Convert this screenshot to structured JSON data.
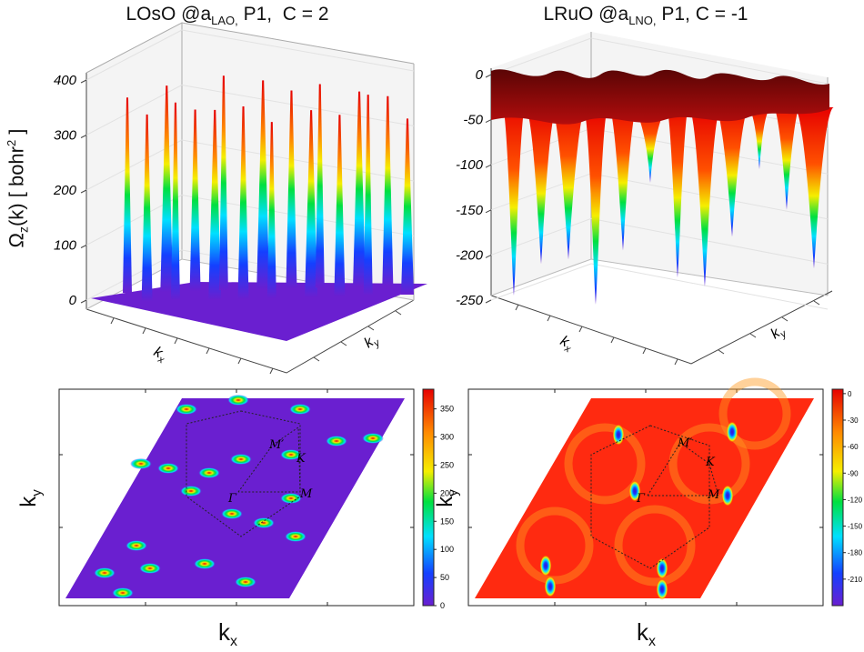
{
  "titles": {
    "left": {
      "pre": "LOsO @a",
      "sub": "LAO,",
      "post": " P1,  C = 2"
    },
    "right": {
      "pre": "LRuO @a",
      "sub": "LNO,",
      "post": " P1, C = -1"
    }
  },
  "ylabel": {
    "pre": "Ω",
    "sub": "z",
    "mid": "(k) [ bohr",
    "sup": "2",
    "post": " ]"
  },
  "kx": {
    "base": "k",
    "sub": "x"
  },
  "ky": {
    "base": "k",
    "sub": "y"
  },
  "bz_labels": {
    "gamma": "Γ",
    "M": "M",
    "Mprime": "M′",
    "K": "K"
  },
  "colors": {
    "purple": "#6a1fd0",
    "blue": "#1440ff",
    "cyan": "#00e0ff",
    "green": "#00e040",
    "yellow": "#f5ee00",
    "orange": "#ff8a00",
    "red": "#e60000",
    "dark_red": "#5a0505"
  },
  "chart_data": [
    {
      "type": "surface3d",
      "title": "LOsO @aLAO, P1,  C = 2",
      "xlabel": "kx",
      "ylabel": "ky",
      "zlabel": "Ωz(k) [ bohr2 ]",
      "z_ticks": [
        0,
        100,
        200,
        300,
        400
      ],
      "zlim": [
        0,
        400
      ],
      "baseline": 0,
      "peaks": [
        355,
        340,
        375,
        360,
        330,
        345,
        390,
        350,
        380,
        320,
        360,
        340,
        370,
        330,
        355,
        365,
        345,
        320
      ]
    },
    {
      "type": "surface3d",
      "title": "LRuO @aLNO, P1, C = -1",
      "xlabel": "kx",
      "ylabel": "ky",
      "zlabel": "Ωz(k) [ bohr2 ]",
      "z_ticks": [
        0,
        -50,
        -100,
        -150,
        -200,
        -250
      ],
      "zlim": [
        -250,
        0
      ],
      "baseline": 0,
      "troughs": [
        -245,
        -210,
        -205,
        -255,
        -195,
        -120,
        -225,
        -235,
        -180,
        -105,
        -150,
        -215
      ]
    },
    {
      "type": "heatmap",
      "xlabel": "kx",
      "ylabel": "ky",
      "colorbar_ticks": [
        350,
        300,
        250,
        200,
        150,
        100,
        50,
        0
      ],
      "clim": [
        0,
        385
      ],
      "background_value": 0,
      "hotspot_value": 380
    },
    {
      "type": "heatmap",
      "xlabel": "kx",
      "ylabel": "ky",
      "colorbar_ticks": [
        0,
        -30,
        -60,
        -90,
        -120,
        -150,
        -180,
        -210
      ],
      "clim": [
        -240,
        5
      ],
      "background_value": 0,
      "hotspot_value": -230
    }
  ]
}
